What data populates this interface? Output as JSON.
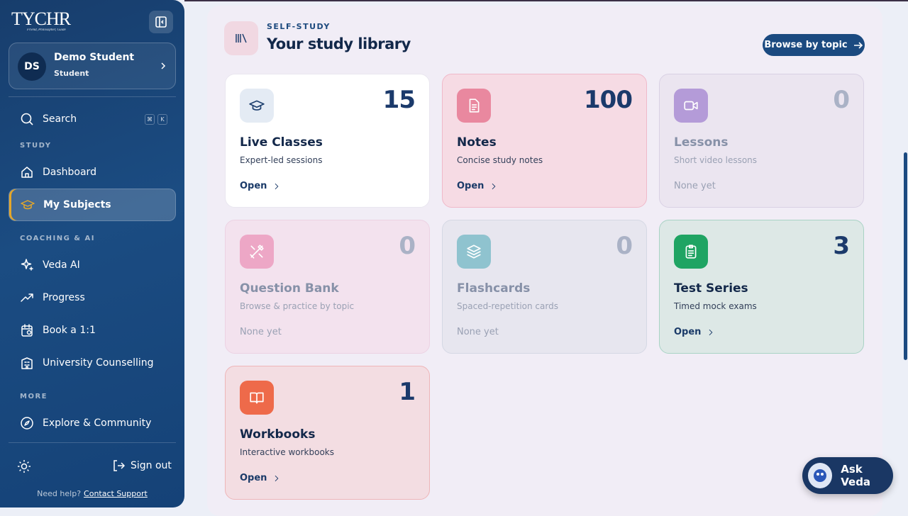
{
  "sidebar": {
    "logo": {
      "name": "TYCHR",
      "tagline": "Friend, Philosopher, Guide"
    },
    "user": {
      "initials": "DS",
      "name": "Demo Student",
      "role": "Student"
    },
    "search": {
      "label": "Search",
      "keys": [
        "⌘",
        "K"
      ]
    },
    "sections": [
      {
        "title": "STUDY",
        "items": [
          {
            "label": "Dashboard"
          },
          {
            "label": "My Subjects",
            "active": true
          }
        ]
      },
      {
        "title": "COACHING & AI",
        "items": [
          {
            "label": "Veda AI"
          },
          {
            "label": "Progress"
          },
          {
            "label": "Book a 1:1"
          },
          {
            "label": "University Counselling"
          }
        ]
      },
      {
        "title": "MORE",
        "items": [
          {
            "label": "Explore & Community"
          }
        ]
      }
    ],
    "sign_out": "Sign out",
    "help": {
      "text": "Need help?",
      "link": "Contact Support"
    }
  },
  "library": {
    "eyebrow": "SELF-STUDY",
    "title": "Your study library",
    "browse": "Browse by topic",
    "cards": [
      {
        "title": "Live Classes",
        "count": 15,
        "description": "Expert-led sessions",
        "action": "Open"
      },
      {
        "title": "Notes",
        "count": 100,
        "description": "Concise study notes",
        "action": "Open"
      },
      {
        "title": "Lessons",
        "count": 0,
        "description": "Short video lessons",
        "status": "None yet"
      },
      {
        "title": "Question Bank",
        "count": 0,
        "description": "Browse & practice by topic",
        "status": "None yet"
      },
      {
        "title": "Flashcards",
        "count": 0,
        "description": "Spaced-repetition cards",
        "status": "None yet"
      },
      {
        "title": "Test Series",
        "count": 3,
        "description": "Timed mock exams",
        "action": "Open"
      },
      {
        "title": "Workbooks",
        "count": 1,
        "description": "Interactive workbooks",
        "action": "Open"
      }
    ]
  },
  "ask_veda": "Ask Veda"
}
